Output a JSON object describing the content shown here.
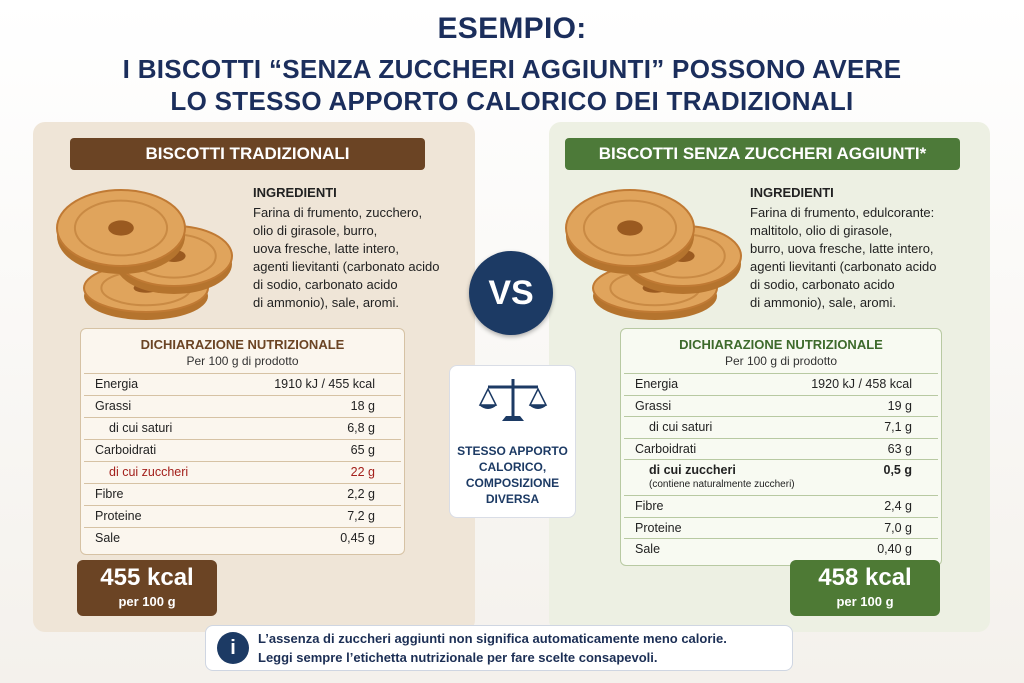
{
  "header": {
    "title_lines": [
      "ESEMPIO:",
      "I BISCOTTI “SENZA ZUCCHERI AGGIUNTI” POSSONO AVERE",
      "LO STESSO APPORTO CALORICO DEI TRADIZIONALI"
    ]
  },
  "panels": [
    {
      "title": "BISCOTTI TRADIZIONALI",
      "ingredients_title": "INGREDIENTI",
      "ingredients_lines": [
        "Farina di frumento, zucchero,",
        "olio di girasole, burro,",
        "uova fresche, latte intero,",
        "agenti lievitanti (carbonato acido",
        "di sodio, carbonato acido",
        "di ammonio), sale, aromi."
      ],
      "nutrition": {
        "title": "DICHIARAZIONE NUTRIZIONALE",
        "subtitle": "Per 100 g di prodotto",
        "rows": [
          {
            "label": "Energia",
            "value": "1910 kJ / 455 kcal"
          },
          {
            "label": "Grassi",
            "value": "18 g"
          },
          {
            "label": "di cui saturi",
            "value": "6,8 g"
          },
          {
            "label": "Carboidrati",
            "value": "65 g"
          },
          {
            "label": "di cui zuccheri",
            "value": "22 g"
          },
          {
            "label": "Fibre",
            "value": "2,2 g"
          },
          {
            "label": "Proteine",
            "value": "7,2 g"
          },
          {
            "label": "Sale",
            "value": "0,45 g"
          }
        ]
      },
      "energy_total": "455 kcal",
      "energy_unit": "per 100 g"
    },
    {
      "title": "BISCOTTI SENZA ZUCCHERI AGGIUNTI*",
      "ingredients_title": "INGREDIENTI",
      "ingredients_lines": [
        "Farina di frumento, edulcorante:",
        "maltitolo, olio di girasole,",
        "burro, uova fresche, latte intero,",
        "agenti lievitanti (carbonato acido",
        "di sodio, carbonato acido",
        "di ammonio), sale, aromi."
      ],
      "nutrition": {
        "title": "DICHIARAZIONE NUTRIZIONALE",
        "subtitle": "Per 100 g di prodotto",
        "rows": [
          {
            "label": "Energia",
            "value": "1920 kJ / 458 kcal"
          },
          {
            "label": "Grassi",
            "value": "19 g"
          },
          {
            "label": "di cui saturi",
            "value": "7,1 g"
          },
          {
            "label": "Carboidrati",
            "value": "63 g"
          },
          {
            "label": "di cui zuccheri",
            "value": "0,5 g",
            "note": "(contiene naturalmente zuccheri)"
          },
          {
            "label": "Fibre",
            "value": "2,4 g"
          },
          {
            "label": "Proteine",
            "value": "7,0 g"
          },
          {
            "label": "Sale",
            "value": "0,40 g"
          }
        ]
      },
      "energy_total": "458 kcal",
      "energy_unit": "per 100 g"
    }
  ],
  "vs": "VS",
  "comparison_note": {
    "lines": [
      "STESSO APPORTO",
      "CALORICO,",
      "COMPOSIZIONE",
      "DIVERSA"
    ]
  },
  "footer": {
    "icon": "i",
    "lines": [
      "L’assenza di zuccheri aggiunti non significa automaticamente meno calorie.",
      "Leggi sempre l’etichetta nutrizionale per fare scelte consapevoli."
    ]
  }
}
